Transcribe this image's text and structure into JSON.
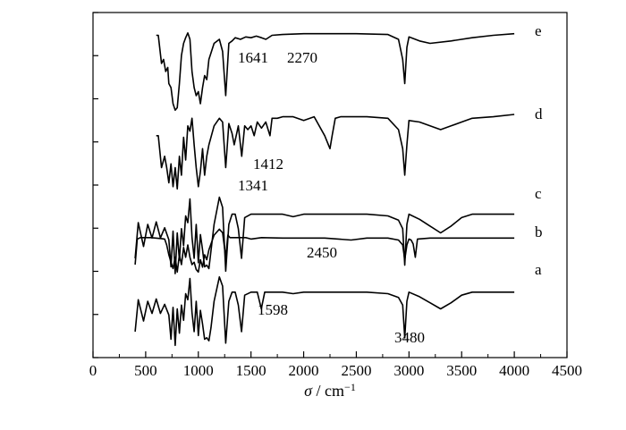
{
  "chart_data": {
    "type": "line",
    "title": "",
    "xlabel": "σ / cm⁻¹",
    "ylabel": "",
    "xlabel_parts": {
      "symbol": "σ",
      "separator": " / cm",
      "superscript": "−1"
    },
    "xlim": [
      0,
      4500
    ],
    "x_ticks": [
      0,
      500,
      1000,
      1500,
      2000,
      2500,
      3000,
      3500,
      4000,
      4500
    ],
    "x_tick_labels": [
      "0",
      "500",
      "1000",
      "1500",
      "2000",
      "2500",
      "3000",
      "3500",
      "4000",
      "4500"
    ],
    "y_ticks_count": 8,
    "grid": false,
    "series": [
      {
        "name": "a",
        "baseline": 0.72,
        "x": [
          400,
          430,
          480,
          520,
          560,
          600,
          640,
          680,
          720,
          740,
          760,
          780,
          800,
          820,
          840,
          860,
          880,
          900,
          920,
          940,
          960,
          980,
          1000,
          1020,
          1040,
          1060,
          1080,
          1100,
          1120,
          1150,
          1200,
          1230,
          1260,
          1290,
          1320,
          1350,
          1380,
          1410,
          1440,
          1500,
          1560,
          1598,
          1630,
          1700,
          1800,
          1900,
          2000,
          2200,
          2400,
          2600,
          2800,
          2900,
          2940,
          2960,
          2980,
          3000,
          3100,
          3200,
          3300,
          3400,
          3500,
          3600,
          3800,
          4000
        ],
        "y": [
          0.2,
          0.62,
          0.34,
          0.6,
          0.44,
          0.63,
          0.44,
          0.56,
          0.42,
          0.1,
          0.52,
          0.02,
          0.5,
          0.18,
          0.55,
          0.35,
          0.7,
          0.62,
          0.9,
          0.45,
          0.2,
          0.6,
          0.15,
          0.48,
          0.3,
          0.1,
          0.12,
          0.08,
          0.25,
          0.6,
          0.92,
          0.8,
          0.05,
          0.6,
          0.72,
          0.72,
          0.55,
          0.2,
          0.68,
          0.72,
          0.72,
          0.5,
          0.72,
          0.72,
          0.72,
          0.7,
          0.72,
          0.72,
          0.72,
          0.72,
          0.7,
          0.65,
          0.55,
          0.12,
          0.6,
          0.72,
          0.66,
          0.58,
          0.5,
          0.58,
          0.68,
          0.72,
          0.72,
          0.72
        ]
      },
      {
        "name": "b",
        "baseline": 0.72,
        "x": [
          400,
          420,
          450,
          550,
          650,
          680,
          700,
          720,
          740,
          760,
          780,
          800,
          820,
          840,
          860,
          880,
          900,
          920,
          940,
          960,
          980,
          1000,
          1020,
          1040,
          1060,
          1080,
          1100,
          1150,
          1200,
          1230,
          1260,
          1280,
          1300,
          1350,
          1400,
          1450,
          1500,
          1600,
          1800,
          2000,
          2200,
          2450,
          2600,
          2800,
          2900,
          2940,
          2960,
          2980,
          3000,
          3020,
          3040,
          3060,
          3080,
          3200,
          3500,
          3800,
          4000
        ],
        "y": [
          0.2,
          0.72,
          0.75,
          0.75,
          0.73,
          0.72,
          0.6,
          0.4,
          0.25,
          0.12,
          0.35,
          0.05,
          0.4,
          0.2,
          0.55,
          0.35,
          0.6,
          0.35,
          0.2,
          0.25,
          0.1,
          0.05,
          0.3,
          0.15,
          0.4,
          0.3,
          0.5,
          0.8,
          0.92,
          0.85,
          0.35,
          0.8,
          0.75,
          0.75,
          0.75,
          0.75,
          0.72,
          0.75,
          0.74,
          0.74,
          0.74,
          0.7,
          0.74,
          0.74,
          0.7,
          0.6,
          0.3,
          0.6,
          0.72,
          0.7,
          0.62,
          0.35,
          0.72,
          0.74,
          0.74,
          0.74,
          0.74
        ]
      },
      {
        "name": "c",
        "baseline": 0.72,
        "x": [
          400,
          430,
          480,
          520,
          560,
          600,
          640,
          680,
          720,
          740,
          760,
          780,
          800,
          820,
          840,
          860,
          880,
          900,
          920,
          940,
          960,
          980,
          1000,
          1020,
          1040,
          1060,
          1080,
          1100,
          1150,
          1200,
          1230,
          1260,
          1290,
          1320,
          1350,
          1380,
          1410,
          1440,
          1500,
          1600,
          1700,
          1800,
          1900,
          2000,
          2200,
          2400,
          2600,
          2800,
          2900,
          2940,
          2960,
          2980,
          3000,
          3100,
          3200,
          3300,
          3400,
          3500,
          3600,
          3800,
          4000
        ],
        "y": [
          0.2,
          0.62,
          0.34,
          0.6,
          0.44,
          0.63,
          0.44,
          0.56,
          0.42,
          0.1,
          0.52,
          0.02,
          0.5,
          0.18,
          0.55,
          0.35,
          0.7,
          0.62,
          0.9,
          0.45,
          0.2,
          0.6,
          0.15,
          0.48,
          0.3,
          0.1,
          0.12,
          0.08,
          0.6,
          0.92,
          0.8,
          0.05,
          0.6,
          0.72,
          0.72,
          0.55,
          0.2,
          0.68,
          0.72,
          0.72,
          0.72,
          0.72,
          0.69,
          0.72,
          0.72,
          0.72,
          0.72,
          0.7,
          0.65,
          0.55,
          0.12,
          0.6,
          0.72,
          0.66,
          0.58,
          0.5,
          0.58,
          0.68,
          0.72,
          0.72,
          0.72
        ]
      },
      {
        "name": "d",
        "baseline": 0.72,
        "x": [
          600,
          620,
          650,
          680,
          700,
          720,
          740,
          760,
          780,
          800,
          820,
          840,
          860,
          880,
          900,
          920,
          940,
          960,
          980,
          1000,
          1020,
          1040,
          1060,
          1080,
          1100,
          1150,
          1200,
          1230,
          1260,
          1290,
          1320,
          1341,
          1380,
          1412,
          1440,
          1470,
          1500,
          1530,
          1560,
          1600,
          1640,
          1680,
          1700,
          1750,
          1800,
          1900,
          2000,
          2100,
          2200,
          2250,
          2270,
          2300,
          2350,
          2400,
          2500,
          2600,
          2700,
          2800,
          2900,
          2940,
          2960,
          2980,
          3000,
          3100,
          3200,
          3300,
          3400,
          3500,
          3600,
          3800,
          4000
        ],
        "y": [
          0.72,
          0.72,
          0.3,
          0.45,
          0.3,
          0.1,
          0.35,
          0.05,
          0.3,
          0.02,
          0.45,
          0.2,
          0.7,
          0.4,
          0.85,
          0.78,
          0.95,
          0.6,
          0.3,
          0.05,
          0.25,
          0.55,
          0.2,
          0.45,
          0.6,
          0.85,
          0.95,
          0.9,
          0.3,
          0.88,
          0.75,
          0.6,
          0.85,
          0.45,
          0.85,
          0.8,
          0.85,
          0.72,
          0.9,
          0.82,
          0.9,
          0.72,
          0.95,
          0.95,
          0.97,
          0.97,
          0.92,
          0.97,
          0.72,
          0.55,
          0.72,
          0.95,
          0.97,
          0.97,
          0.97,
          0.97,
          0.96,
          0.95,
          0.8,
          0.55,
          0.2,
          0.6,
          0.92,
          0.9,
          0.85,
          0.8,
          0.85,
          0.9,
          0.95,
          0.97,
          1.0
        ]
      },
      {
        "name": "e",
        "baseline": 0.72,
        "x": [
          600,
          620,
          650,
          670,
          690,
          710,
          720,
          740,
          760,
          780,
          800,
          820,
          840,
          860,
          880,
          900,
          920,
          940,
          960,
          980,
          1000,
          1020,
          1040,
          1060,
          1080,
          1100,
          1150,
          1200,
          1230,
          1260,
          1290,
          1320,
          1350,
          1400,
          1450,
          1500,
          1550,
          1600,
          1641,
          1700,
          1800,
          2000,
          2270,
          2500,
          2800,
          2900,
          2940,
          2960,
          2980,
          3000,
          3100,
          3200,
          3400,
          3600,
          3800,
          4000
        ],
        "y": [
          0.95,
          0.95,
          0.6,
          0.65,
          0.5,
          0.55,
          0.35,
          0.3,
          0.1,
          0.02,
          0.05,
          0.35,
          0.7,
          0.85,
          0.92,
          0.98,
          0.9,
          0.5,
          0.3,
          0.2,
          0.25,
          0.1,
          0.3,
          0.45,
          0.4,
          0.65,
          0.85,
          0.9,
          0.75,
          0.2,
          0.85,
          0.88,
          0.92,
          0.9,
          0.93,
          0.92,
          0.94,
          0.92,
          0.9,
          0.95,
          0.96,
          0.97,
          0.97,
          0.97,
          0.96,
          0.9,
          0.65,
          0.35,
          0.8,
          0.93,
          0.88,
          0.85,
          0.88,
          0.92,
          0.95,
          0.97
        ]
      }
    ],
    "annotations": [
      {
        "text": "2270",
        "x": 2270,
        "series": "e"
      },
      {
        "text": "1641",
        "x": 1641,
        "series": "e"
      },
      {
        "text": "1412",
        "x": 1412,
        "series": "d"
      },
      {
        "text": "1341",
        "x": 1341,
        "series": "d"
      },
      {
        "text": "2450",
        "x": 2450,
        "series": "b"
      },
      {
        "text": "1598",
        "x": 1598,
        "series": "a"
      },
      {
        "text": "3480",
        "x": 3480,
        "series": "a"
      }
    ]
  }
}
